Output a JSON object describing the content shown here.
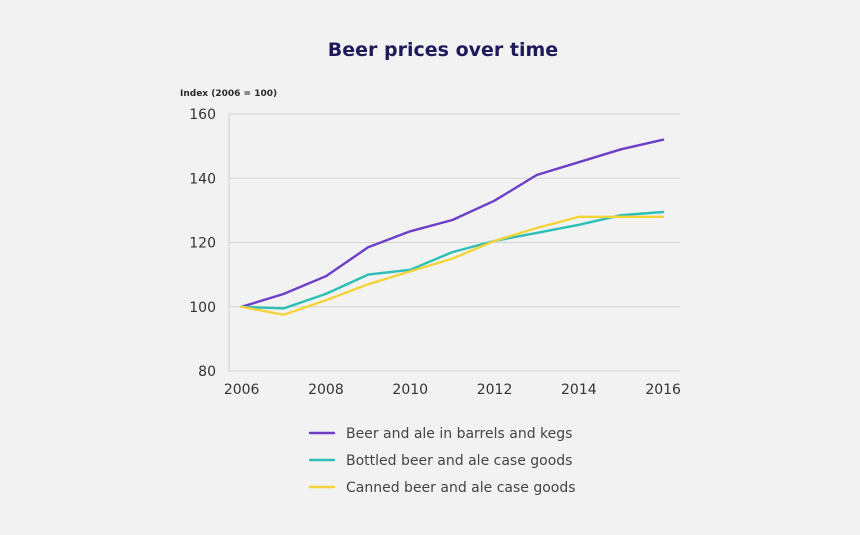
{
  "chart_data": {
    "type": "line",
    "title": "Beer prices over time",
    "ylabel": "Index (2006 = 100)",
    "xlabel": "",
    "x": [
      2006,
      2007,
      2008,
      2009,
      2010,
      2011,
      2012,
      2013,
      2014,
      2015,
      2016
    ],
    "xticks": [
      "2006",
      "2008",
      "2010",
      "2012",
      "2014",
      "2016"
    ],
    "xlim": [
      2005.7,
      2016.4
    ],
    "ylim": [
      80,
      160
    ],
    "yticks": [
      "80",
      "100",
      "120",
      "140",
      "160"
    ],
    "grid": true,
    "legend_position": "bottom",
    "series": [
      {
        "name": "Beer and ale in barrels and kegs",
        "color": "#6b3fc8",
        "values": [
          100,
          104,
          109.5,
          118.5,
          123.5,
          127,
          133,
          141,
          145,
          149,
          152
        ]
      },
      {
        "name": "Bottled beer and ale case goods",
        "color": "#2bbfb6",
        "values": [
          100,
          99.5,
          104,
          110,
          111.5,
          117,
          120.5,
          123,
          125.5,
          128.5,
          129.5
        ]
      },
      {
        "name": "Canned beer and ale case goods",
        "color": "#f5d33a",
        "values": [
          100,
          97.5,
          102,
          107,
          111,
          115,
          120.5,
          124.5,
          128,
          128,
          128
        ]
      }
    ]
  }
}
